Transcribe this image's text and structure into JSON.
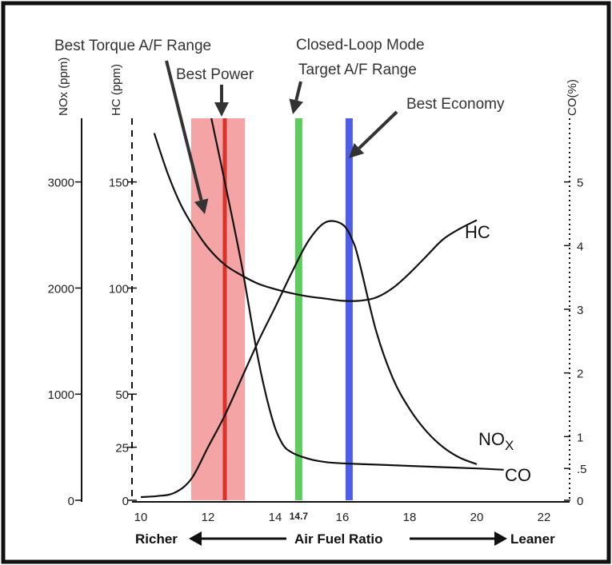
{
  "chart_data": {
    "type": "line",
    "xlabel": "Air Fuel Ratio",
    "x_left_label": "Richer",
    "x_right_label": "Leaner",
    "x_ticks": [
      10,
      12,
      14,
      16,
      18,
      20,
      22
    ],
    "xlim": [
      10,
      23
    ],
    "special_x_tick": "14.7",
    "axes": {
      "nox": {
        "label": "NOx (ppm)",
        "ticks": [
          0,
          1000,
          2000,
          3000
        ],
        "ylim": [
          0,
          3600
        ]
      },
      "hc": {
        "label": "HC (ppm)",
        "ticks": [
          0,
          25,
          50,
          100,
          150
        ],
        "ylim": [
          0,
          180
        ]
      },
      "co": {
        "label": "CO(%)",
        "ticks": [
          0,
          0.5,
          1,
          2,
          3,
          4,
          5
        ],
        "tick_labels": [
          "0",
          ".5",
          "1",
          "2",
          "3",
          "4",
          "5"
        ],
        "ylim": [
          0,
          6
        ]
      }
    },
    "series": [
      {
        "name": "HC",
        "axis": "hc",
        "x": [
          10.4,
          10.8,
          11.2,
          11.6,
          12.0,
          12.5,
          13.0,
          13.5,
          14.0,
          14.5,
          15.0,
          15.5,
          16.0,
          16.5,
          17.0,
          17.5,
          18.0,
          18.5,
          19.0,
          19.5,
          20.0
        ],
        "values": [
          173,
          154,
          139,
          128,
          119,
          111,
          106,
          102,
          99.5,
          97.5,
          96,
          95,
          94,
          94,
          95.5,
          100,
          107,
          115,
          123,
          128,
          132
        ]
      },
      {
        "name": "NOx",
        "axis": "nox",
        "x": [
          10.0,
          10.5,
          11.0,
          11.5,
          12.0,
          12.5,
          13.0,
          13.5,
          14.0,
          14.5,
          15.0,
          15.5,
          16.0,
          16.3,
          16.5,
          17.0,
          17.5,
          18.0,
          18.5,
          19.0,
          19.5,
          20.0
        ],
        "values": [
          30,
          40,
          70,
          200,
          500,
          800,
          1150,
          1500,
          1820,
          2150,
          2450,
          2620,
          2600,
          2450,
          2250,
          1600,
          1150,
          860,
          650,
          500,
          400,
          340
        ]
      },
      {
        "name": "CO",
        "axis": "co",
        "x": [
          12.1,
          12.5,
          13.0,
          13.5,
          13.9,
          14.2,
          14.5,
          15.0,
          15.5,
          16.0,
          17.0,
          18.0,
          19.0,
          20.0,
          20.8
        ],
        "values": [
          6.0,
          5.0,
          3.7,
          2.2,
          1.3,
          0.9,
          0.75,
          0.65,
          0.6,
          0.58,
          0.56,
          0.54,
          0.52,
          0.5,
          0.48
        ]
      }
    ],
    "series_labels": {
      "hc": "HC",
      "nox_base": "NO",
      "nox_sub": "X",
      "co": "CO"
    },
    "bands": {
      "best_torque": {
        "label": "Best Torque A/F Range",
        "range": [
          11.5,
          13.1
        ],
        "color": "#f4a4a4"
      },
      "best_power": {
        "label": "Best Power",
        "x": 12.5,
        "color": "#d9342b"
      },
      "closed_loop": {
        "label_line1": "Closed-Loop Mode",
        "label_line2": "Target A/F Range",
        "x": 14.7,
        "color": "#5ecb5e"
      },
      "best_economy": {
        "label": "Best Economy",
        "x": 16.2,
        "color": "#4f5ee6"
      }
    },
    "grid": false
  }
}
